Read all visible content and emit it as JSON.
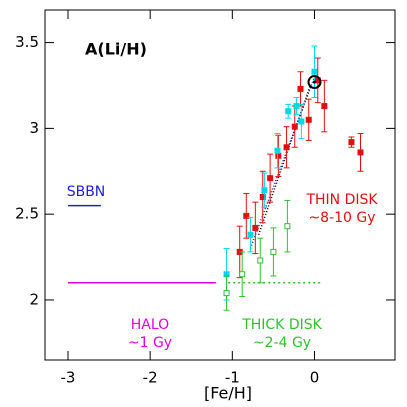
{
  "chart_data": {
    "type": "scatter",
    "title": "A(Li/H)",
    "x_label": "[Fe/H]",
    "xlim": [
      -3.28,
      0.98
    ],
    "xticks": [
      -3,
      -2,
      -1,
      0
    ],
    "ylim": [
      1.65,
      3.69
    ],
    "yticks": [
      2,
      2.5,
      3,
      3.5
    ],
    "series": [
      {
        "color": "#e01010",
        "marker": "filled-square",
        "x": [
          -0.91,
          -0.83,
          -0.72,
          -0.63,
          -0.54,
          -0.44,
          -0.34,
          -0.24,
          -0.17,
          -0.07,
          0.04,
          0.12,
          0.45,
          0.56
        ],
        "values": [
          2.28,
          2.49,
          2.42,
          2.6,
          2.71,
          2.84,
          2.89,
          3.01,
          3.23,
          3.05,
          3.28,
          3.13,
          2.92,
          2.86
        ],
        "errors": [
          0.15,
          0.13,
          0.15,
          0.15,
          0.14,
          0.12,
          0.12,
          0.12,
          0.1,
          0.12,
          0.13,
          0.15,
          0.03,
          0.11
        ]
      },
      {
        "color": "#00d8e8",
        "marker": "filled-square",
        "x": [
          -1.07,
          -0.78,
          -0.61,
          -0.45,
          -0.32,
          -0.22,
          -0.16,
          0.0
        ],
        "values": [
          2.15,
          2.38,
          2.64,
          2.87,
          3.1,
          3.13,
          3.04,
          3.33
        ],
        "errors": [
          0.15,
          0.1,
          0.1,
          0.1,
          0.04,
          0.05,
          0.1,
          0.15
        ]
      },
      {
        "color": "#30c030",
        "marker": "open-square",
        "x": [
          -1.07,
          -0.88,
          -0.66,
          -0.5,
          -0.33
        ],
        "values": [
          2.04,
          2.15,
          2.23,
          2.28,
          2.43
        ],
        "errors": [
          0.1,
          0.13,
          0.13,
          0.14,
          0.15
        ]
      }
    ],
    "lines": [
      {
        "color": "#e000e0",
        "dash": "none",
        "x": [
          -3,
          -1.2
        ],
        "values": [
          2.1,
          2.1
        ]
      },
      {
        "color": "#2020d0",
        "dash": "none",
        "x": [
          -3,
          -2.6
        ],
        "values": [
          2.55,
          2.55
        ]
      },
      {
        "color": "#30c030",
        "dash": "2,3",
        "x": [
          -1.05,
          0.1
        ],
        "values": [
          2.1,
          2.1
        ]
      },
      {
        "color": "#2020d0",
        "dash": "1,2",
        "x": [
          -0.78,
          0.0
        ],
        "values": [
          2.3,
          3.3
        ]
      },
      {
        "color": "#000000",
        "dash": "1,2",
        "x": [
          -0.68,
          -0.05
        ],
        "values": [
          2.38,
          3.25
        ]
      }
    ],
    "sun": {
      "x": 0.0,
      "y": 3.27
    },
    "annotations": {
      "sbbn": "SBBN",
      "thin_disk": "THIN DISK",
      "thin_age": "~8-10 Gy",
      "halo": "HALO",
      "halo_age": "~1 Gy",
      "thick_disk": "THICK DISK",
      "thick_age": "~2-4 Gy"
    }
  }
}
